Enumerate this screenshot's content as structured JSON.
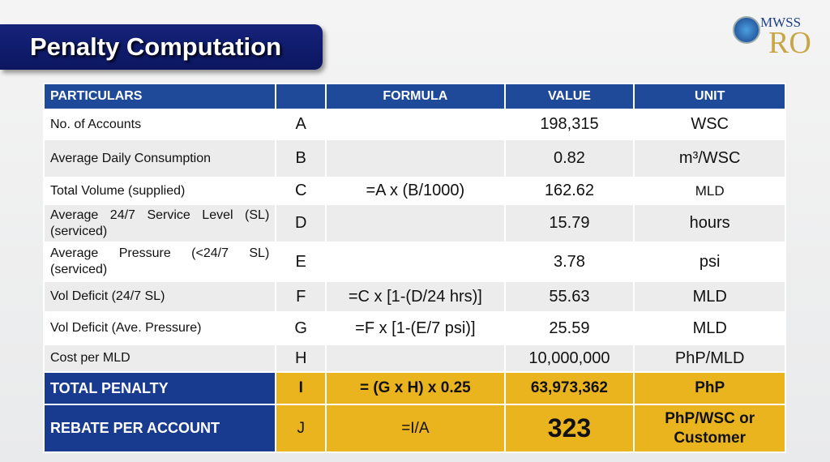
{
  "title": "Penalty Computation",
  "logo": {
    "line1": "MWSS",
    "line2": "RO"
  },
  "headers": [
    "PARTICULARS",
    "",
    "FORMULA",
    "VALUE",
    "UNIT"
  ],
  "rows": [
    [
      "No. of Accounts",
      "A",
      "",
      "198,315",
      "WSC"
    ],
    [
      "Average Daily Consumption",
      "B",
      "",
      "0.82",
      "m³/WSC"
    ],
    [
      "Total Volume (supplied)",
      "C",
      "=A x (B/1000)",
      "162.62",
      "MLD"
    ],
    [
      "Average 24/7 Service Level (SL) (serviced)",
      "D",
      "",
      "15.79",
      "hours"
    ],
    [
      "Average Pressure (<24/7 SL) (serviced)",
      "E",
      "",
      "3.78",
      "psi"
    ],
    [
      "Vol Deficit (24/7 SL)",
      "F",
      "=C x [1-(D/24 hrs)]",
      "55.63",
      "MLD"
    ],
    [
      "Vol Deficit (Ave. Pressure)",
      "G",
      "=F x [1-(E/7 psi)]",
      "25.59",
      "MLD"
    ],
    [
      "Cost per MLD",
      "H",
      "",
      "10,000,000",
      "PhP/MLD"
    ],
    [
      "TOTAL PENALTY",
      "I",
      "= (G x H) x 0.25",
      "63,973,362",
      "PhP"
    ],
    [
      "REBATE PER ACCOUNT",
      "J",
      "=I/A",
      "323",
      "PhP/WSC or Customer"
    ]
  ],
  "colors": {
    "header": "#1f4a9a",
    "total_label": "#183b90",
    "gold": "#e9b41e"
  }
}
